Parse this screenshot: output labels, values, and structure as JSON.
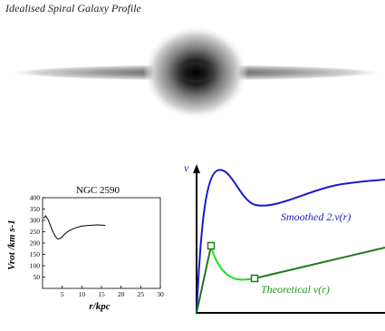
{
  "figure_title": "Idealised Spiral Galaxy Profile",
  "ngc_panel": {
    "title": "NGC 2590",
    "xlabel": "r/kpc",
    "ylabel": "Vrot /km s-1",
    "x_ticks": [
      "5",
      "10",
      "15",
      "20",
      "25",
      "30"
    ],
    "y_ticks": [
      "50",
      "100",
      "150",
      "200",
      "250",
      "300",
      "350",
      "400"
    ],
    "xlim": [
      0,
      30
    ],
    "ylim": [
      0,
      400
    ],
    "curve": [
      [
        0.3,
        310
      ],
      [
        0.8,
        320
      ],
      [
        1.5,
        300
      ],
      [
        2.5,
        255
      ],
      [
        3.3,
        228
      ],
      [
        3.8,
        218
      ],
      [
        4.5,
        220
      ],
      [
        5.5,
        237
      ],
      [
        6.5,
        252
      ],
      [
        8,
        265
      ],
      [
        10,
        275
      ],
      [
        12,
        278
      ],
      [
        14,
        280
      ],
      [
        16,
        278
      ]
    ]
  },
  "schematic": {
    "v_label": "v",
    "smoothed_label": "Smoothed 2.v(r)",
    "theoretical_label": "Theoretical v(r)",
    "colors": {
      "smoothed": "#1a1acc",
      "theoretical": "#22dd22",
      "linear": "#1d7a1d",
      "axis": "#000000"
    }
  }
}
